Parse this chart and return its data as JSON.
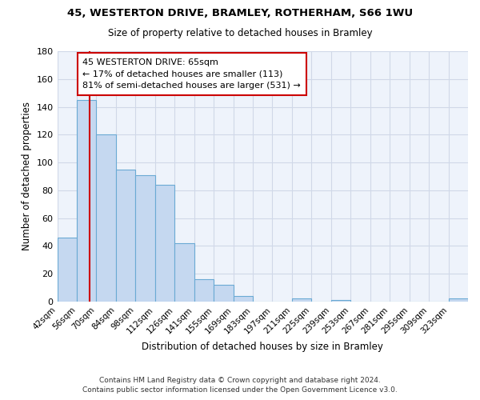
{
  "title": "45, WESTERTON DRIVE, BRAMLEY, ROTHERHAM, S66 1WU",
  "subtitle": "Size of property relative to detached houses in Bramley",
  "xlabel": "Distribution of detached houses by size in Bramley",
  "ylabel": "Number of detached properties",
  "bin_labels": [
    "42sqm",
    "56sqm",
    "70sqm",
    "84sqm",
    "98sqm",
    "112sqm",
    "126sqm",
    "141sqm",
    "155sqm",
    "169sqm",
    "183sqm",
    "197sqm",
    "211sqm",
    "225sqm",
    "239sqm",
    "253sqm",
    "267sqm",
    "281sqm",
    "295sqm",
    "309sqm",
    "323sqm"
  ],
  "bar_values": [
    46,
    145,
    120,
    95,
    91,
    84,
    42,
    16,
    12,
    4,
    0,
    0,
    2,
    0,
    1,
    0,
    0,
    0,
    0,
    0,
    2
  ],
  "bar_color": "#c5d8f0",
  "bar_edge_color": "#6aaad4",
  "vline_color": "#cc0000",
  "vline_position": 1.65,
  "annotation_text": "45 WESTERTON DRIVE: 65sqm\n← 17% of detached houses are smaller (113)\n81% of semi-detached houses are larger (531) →",
  "annotation_box_facecolor": "#ffffff",
  "annotation_box_edgecolor": "#cc0000",
  "ylim": [
    0,
    180
  ],
  "yticks": [
    0,
    20,
    40,
    60,
    80,
    100,
    120,
    140,
    160,
    180
  ],
  "footer_line1": "Contains HM Land Registry data © Crown copyright and database right 2024.",
  "footer_line2": "Contains public sector information licensed under the Open Government Licence v3.0.",
  "background_color": "#ffffff",
  "plot_bg_color": "#eef3fb"
}
